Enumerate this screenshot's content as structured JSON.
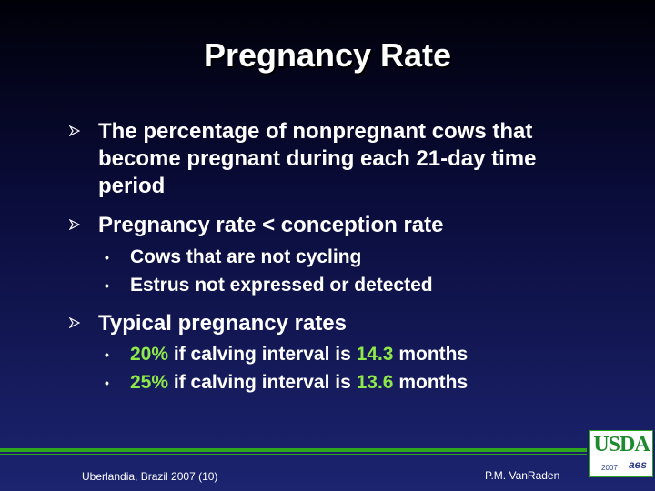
{
  "slide": {
    "title": "Pregnancy Rate",
    "bullets": [
      {
        "text": "The percentage of nonpregnant cows that become pregnant during each 21-day time period"
      },
      {
        "text": "Pregnancy rate < conception rate",
        "sub": [
          "Cows that are not cycling",
          "Estrus not expressed or detected"
        ]
      },
      {
        "text": "Typical pregnancy rates",
        "sub": [
          {
            "pct": "20%",
            "mid": " if calving interval is ",
            "val": "14.3",
            "end": " months"
          },
          {
            "pct": "25%",
            "mid": " if calving interval is ",
            "val": "13.6",
            "end": " months"
          }
        ]
      }
    ]
  },
  "footer": {
    "left": "Uberlandia, Brazil 2007 (10)",
    "right": "P.M. VanRaden"
  },
  "logo": {
    "text": "USDA",
    "year": "2007",
    "mark": "aes"
  },
  "colors": {
    "background_top": "#000008",
    "background_bottom": "#1c2470",
    "highlight": "#8ee84a",
    "accent_line": "#2ea51e"
  }
}
